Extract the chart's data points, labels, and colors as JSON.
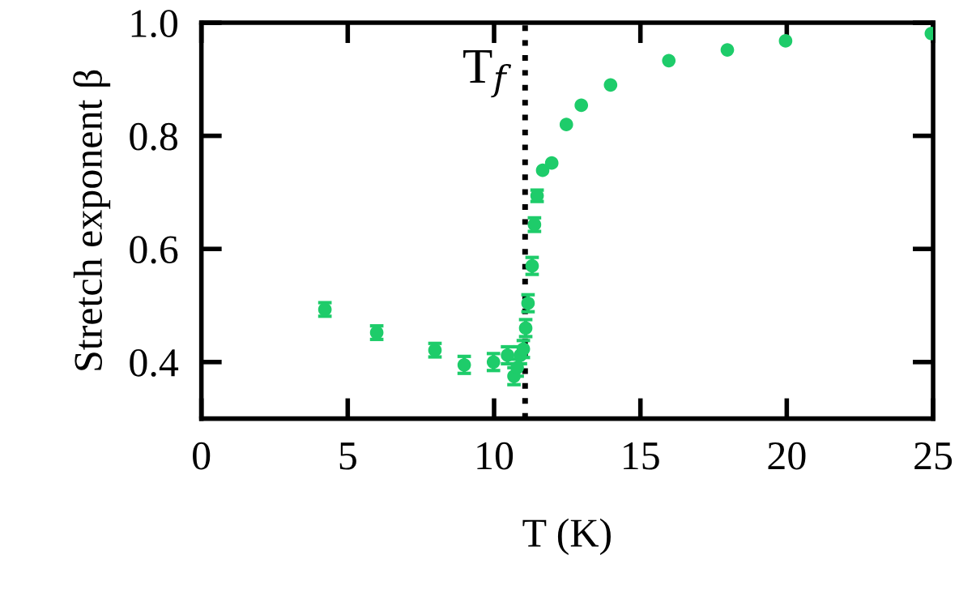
{
  "chart_data": {
    "type": "scatter",
    "xlabel": "T (K)",
    "ylabel": "Stretch exponent β",
    "x": [
      4.22,
      5.99,
      7.98,
      8.98,
      9.98,
      10.46,
      10.68,
      10.79,
      10.9,
      11.0,
      11.08,
      11.16,
      11.3,
      11.38,
      11.47,
      11.66,
      11.97,
      12.47,
      12.98,
      13.98,
      15.97,
      17.97,
      19.96,
      24.94
    ],
    "series": [
      {
        "color": "#1ecc6a",
        "values": [
          0.493,
          0.452,
          0.421,
          0.395,
          0.4,
          0.412,
          0.375,
          0.39,
          0.412,
          0.423,
          0.46,
          0.504,
          0.57,
          0.643,
          0.694,
          0.739,
          0.752,
          0.82,
          0.854,
          0.89,
          0.933,
          0.952,
          0.968,
          0.981
        ],
        "errors": [
          0.012,
          0.012,
          0.012,
          0.015,
          0.015,
          0.015,
          0.015,
          0.015,
          0.015,
          0.015,
          0.015,
          0.015,
          0.015,
          0.012,
          0.01,
          null,
          null,
          null,
          null,
          null,
          null,
          null,
          null,
          null
        ]
      }
    ],
    "xlim": [
      0,
      25
    ],
    "ylim": [
      0.3,
      1.0
    ],
    "xticks": [
      0,
      5,
      10,
      15,
      20,
      25
    ],
    "yticks": [
      0.4,
      0.6,
      0.8,
      {
        "value": 1,
        "label": "1.0"
      }
    ],
    "ref_lines": [
      {
        "axis": "x",
        "value": 11.06,
        "label": "T$_{f}$",
        "line_style": "dotted",
        "color": "#000000"
      }
    ],
    "marker": "circle",
    "grid": false,
    "legend": false
  }
}
